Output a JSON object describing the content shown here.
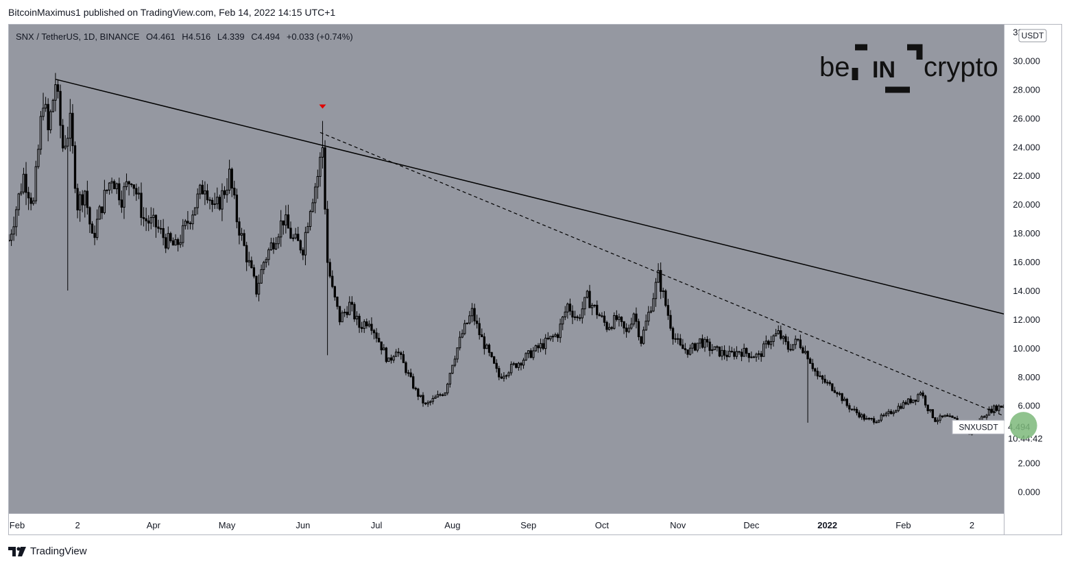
{
  "header": {
    "published_line": "BitcoinMaximus1 published on TradingView.com, Feb 14, 2022 14:15 UTC+1"
  },
  "footer": {
    "brand": "TradingView",
    "brand_icon": "tradingview-logo-icon"
  },
  "watermark": {
    "left": "be",
    "middle": "IN",
    "right": "crypto"
  },
  "colors": {
    "plot_bg": "#9598a1",
    "axis_bg": "#ffffff",
    "candle": "#000000",
    "trendline": "#000000",
    "signal_marker": "#e10000",
    "highlight_circle": "#7db97a"
  },
  "chart_data": {
    "type": "candlestick",
    "symbol_line": {
      "pair": "SNX / TetherUS, 1D, BINANCE",
      "o_label": "O",
      "o_value": "4.461",
      "h_label": "H",
      "h_value": "4.516",
      "l_label": "L",
      "l_value": "4.339",
      "c_label": "C",
      "c_value": "4.494",
      "change": "+0.033 (+0.74%)"
    },
    "y_axis": {
      "currency": "USDT",
      "ticks": [
        "32.000",
        "30.000",
        "28.000",
        "26.000",
        "24.000",
        "22.000",
        "20.000",
        "18.000",
        "16.000",
        "14.000",
        "12.000",
        "10.000",
        "8.000",
        "6.000",
        "4.000",
        "2.000",
        "0.000"
      ],
      "tick_values": [
        32,
        30,
        28,
        26,
        24,
        22,
        20,
        18,
        16,
        14,
        12,
        10,
        8,
        6,
        4,
        2,
        0
      ],
      "range": [
        -1.5,
        32.5
      ]
    },
    "x_axis": {
      "labels": [
        "Feb",
        "2",
        "Apr",
        "May",
        "Jun",
        "Jul",
        "Aug",
        "Sep",
        "Oct",
        "Nov",
        "Dec",
        "2022",
        "Feb",
        "2"
      ],
      "bold_labels": [
        "2022"
      ],
      "label_days": [
        0,
        28,
        59,
        89,
        120,
        150,
        181,
        212,
        242,
        273,
        303,
        334,
        365,
        393
      ],
      "start": "2021-02-01",
      "range_days": [
        0,
        406
      ]
    },
    "last_price": {
      "symbol": "SNXUSDT",
      "price": "4.494",
      "countdown": "10:44:42"
    },
    "anchors": [
      {
        "d": 0,
        "p": 17.5
      },
      {
        "d": 6,
        "p": 22
      },
      {
        "d": 10,
        "p": 20
      },
      {
        "d": 14,
        "p": 27.5
      },
      {
        "d": 16,
        "p": 25
      },
      {
        "d": 19,
        "p": 28.5
      },
      {
        "d": 22,
        "p": 24
      },
      {
        "d": 25,
        "p": 25.5
      },
      {
        "d": 28,
        "p": 20
      },
      {
        "d": 31,
        "p": 21
      },
      {
        "d": 34,
        "p": 17.5
      },
      {
        "d": 38,
        "p": 20
      },
      {
        "d": 42,
        "p": 22
      },
      {
        "d": 46,
        "p": 20.5
      },
      {
        "d": 50,
        "p": 22
      },
      {
        "d": 55,
        "p": 19
      },
      {
        "d": 60,
        "p": 18.5
      },
      {
        "d": 64,
        "p": 17.5
      },
      {
        "d": 68,
        "p": 17
      },
      {
        "d": 71,
        "p": 18
      },
      {
        "d": 76,
        "p": 20
      },
      {
        "d": 80,
        "p": 21.5
      },
      {
        "d": 84,
        "p": 19.5
      },
      {
        "d": 88,
        "p": 21
      },
      {
        "d": 90,
        "p": 22
      },
      {
        "d": 93,
        "p": 19
      },
      {
        "d": 96,
        "p": 17
      },
      {
        "d": 101,
        "p": 14
      },
      {
        "d": 104,
        "p": 16
      },
      {
        "d": 108,
        "p": 17.5
      },
      {
        "d": 112,
        "p": 19
      },
      {
        "d": 116,
        "p": 17.5
      },
      {
        "d": 120,
        "p": 17
      },
      {
        "d": 123,
        "p": 20
      },
      {
        "d": 126,
        "p": 22
      },
      {
        "d": 128,
        "p": 24
      },
      {
        "d": 130,
        "p": 16
      },
      {
        "d": 132,
        "p": 14
      },
      {
        "d": 135,
        "p": 12
      },
      {
        "d": 139,
        "p": 13
      },
      {
        "d": 143,
        "p": 11.5
      },
      {
        "d": 147,
        "p": 12
      },
      {
        "d": 151,
        "p": 10.5
      },
      {
        "d": 155,
        "p": 9
      },
      {
        "d": 158,
        "p": 10
      },
      {
        "d": 162,
        "p": 8.5
      },
      {
        "d": 166,
        "p": 7
      },
      {
        "d": 170,
        "p": 6
      },
      {
        "d": 174,
        "p": 6.5
      },
      {
        "d": 178,
        "p": 7
      },
      {
        "d": 181,
        "p": 9
      },
      {
        "d": 185,
        "p": 11
      },
      {
        "d": 189,
        "p": 12.5
      },
      {
        "d": 192,
        "p": 11
      },
      {
        "d": 196,
        "p": 9.5
      },
      {
        "d": 200,
        "p": 8
      },
      {
        "d": 204,
        "p": 8.5
      },
      {
        "d": 208,
        "p": 9
      },
      {
        "d": 212,
        "p": 9.5
      },
      {
        "d": 216,
        "p": 10
      },
      {
        "d": 220,
        "p": 10.5
      },
      {
        "d": 224,
        "p": 11
      },
      {
        "d": 228,
        "p": 13
      },
      {
        "d": 232,
        "p": 12
      },
      {
        "d": 236,
        "p": 13.5
      },
      {
        "d": 240,
        "p": 12.5
      },
      {
        "d": 244,
        "p": 11.5
      },
      {
        "d": 248,
        "p": 12
      },
      {
        "d": 252,
        "p": 11
      },
      {
        "d": 255,
        "p": 12.5
      },
      {
        "d": 258,
        "p": 10.5
      },
      {
        "d": 262,
        "p": 13
      },
      {
        "d": 265,
        "p": 15
      },
      {
        "d": 268,
        "p": 13
      },
      {
        "d": 271,
        "p": 11
      },
      {
        "d": 274,
        "p": 10
      },
      {
        "d": 278,
        "p": 9.8
      },
      {
        "d": 282,
        "p": 10.5
      },
      {
        "d": 286,
        "p": 10
      },
      {
        "d": 290,
        "p": 9.7
      },
      {
        "d": 294,
        "p": 9.5
      },
      {
        "d": 298,
        "p": 9.8
      },
      {
        "d": 302,
        "p": 9.6
      },
      {
        "d": 306,
        "p": 9.4
      },
      {
        "d": 310,
        "p": 10.5
      },
      {
        "d": 314,
        "p": 11
      },
      {
        "d": 318,
        "p": 10
      },
      {
        "d": 322,
        "p": 10.5
      },
      {
        "d": 326,
        "p": 9.5
      },
      {
        "d": 330,
        "p": 8
      },
      {
        "d": 334,
        "p": 7.5
      },
      {
        "d": 338,
        "p": 7
      },
      {
        "d": 342,
        "p": 6
      },
      {
        "d": 346,
        "p": 5.5
      },
      {
        "d": 350,
        "p": 5
      },
      {
        "d": 354,
        "p": 5
      },
      {
        "d": 358,
        "p": 5.3
      },
      {
        "d": 362,
        "p": 5.8
      },
      {
        "d": 366,
        "p": 6.2
      },
      {
        "d": 370,
        "p": 6.5
      },
      {
        "d": 372,
        "p": 7
      },
      {
        "d": 375,
        "p": 5.8
      },
      {
        "d": 378,
        "p": 5
      },
      {
        "d": 382,
        "p": 5.2
      },
      {
        "d": 386,
        "p": 5
      },
      {
        "d": 390,
        "p": 4.5
      },
      {
        "d": 392,
        "p": 4
      },
      {
        "d": 395,
        "p": 4.8
      },
      {
        "d": 399,
        "p": 5.5
      },
      {
        "d": 402,
        "p": 5.8
      },
      {
        "d": 406,
        "p": 6
      },
      {
        "d": 410,
        "p": 5.8
      },
      {
        "d": 413,
        "p": 5
      },
      {
        "d": 416,
        "p": 4.5
      }
    ],
    "trendlines": [
      {
        "style": "solid",
        "from": {
          "d": 19,
          "p": 28.7
        },
        "to": {
          "d": 474,
          "p": 9.5
        }
      },
      {
        "style": "dashed",
        "from": {
          "d": 127,
          "p": 25
        },
        "to": {
          "d": 417,
          "p": 4.5
        }
      }
    ],
    "signal_marker": {
      "d": 128,
      "p": 26.8,
      "shape": "down-triangle"
    },
    "highlight": {
      "d": 414,
      "p": 4.6,
      "label": ""
    }
  }
}
